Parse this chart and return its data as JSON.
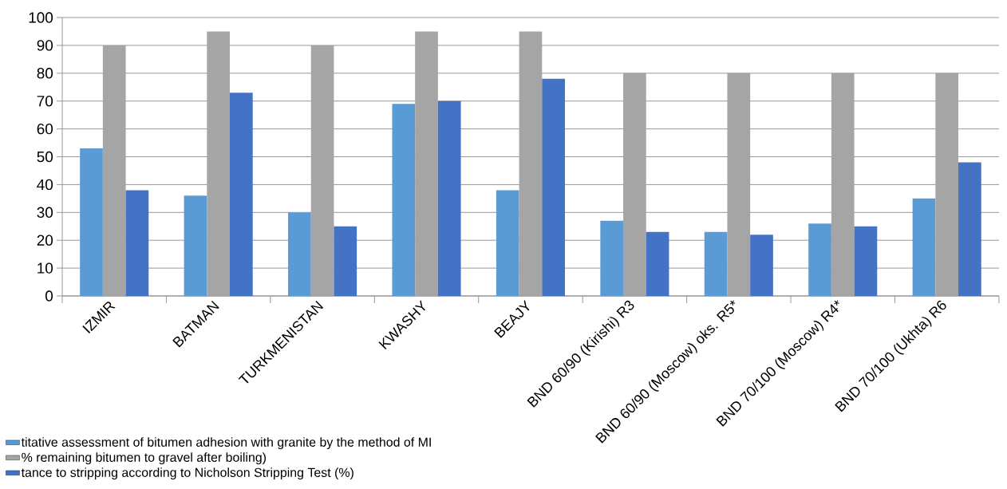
{
  "chart_data": {
    "type": "bar",
    "categories": [
      "IZMIR",
      "BATMAN",
      "TURKMENISTAN",
      "KWASHY",
      "BEAJY",
      "BND 60/90 (Kirishi) R3",
      "BND 60/90 (Moscow) oks. R5*",
      "BND 70/100 (Moscow) R4*",
      "BND 70/100 (Ukhta) R6"
    ],
    "series": [
      {
        "name": "titative assessment of bitumen adhesion with granite by the method of MI",
        "color": "#5b9bd5",
        "values": [
          53,
          36,
          30,
          69,
          38,
          27,
          23,
          26,
          35
        ]
      },
      {
        "name": "% remaining bitumen to gravel after boiling)",
        "color": "#a5a5a5",
        "values": [
          90,
          95,
          90,
          95,
          95,
          80,
          80,
          80,
          80
        ]
      },
      {
        "name": "tance to stripping according to Nicholson Stripping Test (%)",
        "color": "#4472c4",
        "values": [
          38,
          73,
          25,
          70,
          78,
          23,
          22,
          25,
          48
        ]
      }
    ],
    "ylim": [
      0,
      100
    ],
    "yticks": [
      0,
      10,
      20,
      30,
      40,
      50,
      60,
      70,
      80,
      90,
      100
    ],
    "grid": "y",
    "legend": "bottom left"
  }
}
